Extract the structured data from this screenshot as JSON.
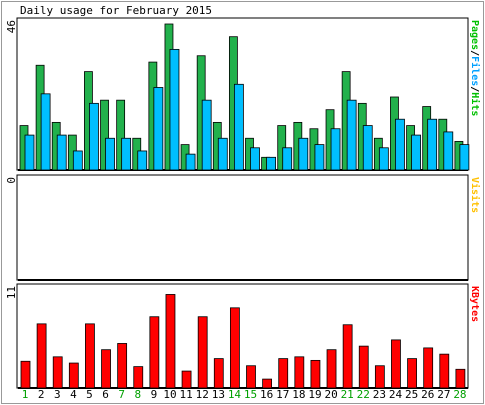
{
  "chart_data": {
    "type": "bar",
    "title": "Daily usage for February 2015",
    "categories": [
      "1",
      "2",
      "3",
      "4",
      "5",
      "6",
      "7",
      "8",
      "9",
      "10",
      "11",
      "12",
      "13",
      "14",
      "15",
      "16",
      "17",
      "18",
      "19",
      "20",
      "21",
      "22",
      "23",
      "24",
      "25",
      "26",
      "27",
      "28"
    ],
    "weekend_days": [
      "1",
      "7",
      "8",
      "14",
      "15",
      "21",
      "22",
      "28"
    ],
    "panels": [
      {
        "id": "hits",
        "ymax_label": "46",
        "ylim": [
          0,
          46
        ],
        "side_label": [
          {
            "text": "Pages",
            "color": "#00c000"
          },
          {
            "text": "/",
            "color": "#000000"
          },
          {
            "text": "Files",
            "color": "#00a0ff"
          },
          {
            "text": "/",
            "color": "#000000"
          },
          {
            "text": "Hits",
            "color": "#00c000"
          }
        ],
        "series": [
          {
            "name": "Hits",
            "color": "#22b14c",
            "values": [
              14,
              33,
              15,
              11,
              31,
              22,
              22,
              10,
              34,
              46,
              8,
              36,
              15,
              42,
              10,
              4,
              14,
              15,
              13,
              19,
              31,
              21,
              10,
              23,
              14,
              20,
              16,
              9
            ]
          },
          {
            "name": "Files",
            "color": "#00bfff",
            "values": [
              11,
              24,
              11,
              6,
              21,
              10,
              10,
              6,
              26,
              38,
              5,
              22,
              10,
              27,
              7,
              4,
              7,
              10,
              8,
              13,
              22,
              14,
              7,
              16,
              11,
              16,
              12,
              8
            ]
          }
        ]
      },
      {
        "id": "visits",
        "ymax_label": "0",
        "ylim": [
          0,
          1
        ],
        "side_label": [
          {
            "text": "Visits",
            "color": "#ffc000"
          }
        ],
        "series": []
      },
      {
        "id": "kbytes",
        "ymax_label": "11",
        "ylim": [
          0,
          11
        ],
        "side_label": [
          {
            "text": "KBytes",
            "color": "#ff0000"
          }
        ],
        "series": [
          {
            "name": "KBytes",
            "color": "#ff0000",
            "values": [
              3,
              7.2,
              3.5,
              2.8,
              7.2,
              4.3,
              5,
              2.4,
              8,
              10.5,
              1.9,
              8,
              3.3,
              9,
              2.5,
              1,
              3.3,
              3.5,
              3.1,
              4.3,
              7.1,
              4.7,
              2.5,
              5.4,
              3.3,
              4.5,
              3.8,
              2.1
            ]
          }
        ]
      }
    ]
  }
}
